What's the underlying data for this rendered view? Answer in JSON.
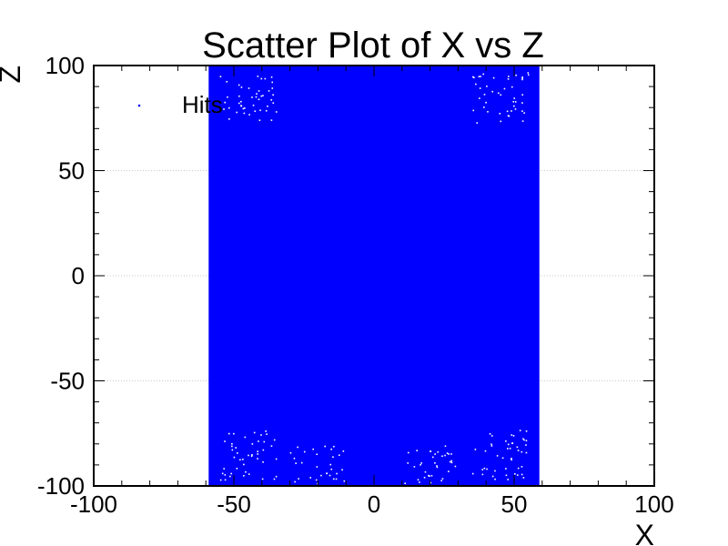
{
  "chart_data": {
    "type": "scatter",
    "title": "Scatter Plot of X vs Z",
    "xlabel": "X",
    "ylabel": "Z",
    "xlim": [
      -100,
      100
    ],
    "ylim": [
      -100,
      100
    ],
    "x_ticks": [
      -100,
      -50,
      0,
      50,
      100
    ],
    "y_ticks": [
      -100,
      -50,
      0,
      50,
      100
    ],
    "grid": true,
    "legend": "top-left",
    "series": [
      {
        "name": "Hits",
        "color": "#0000ff",
        "marker": "dot",
        "x_range": [
          -59,
          59
        ],
        "z_range": [
          -100,
          100
        ],
        "distribution": "uniform dense band"
      }
    ]
  }
}
